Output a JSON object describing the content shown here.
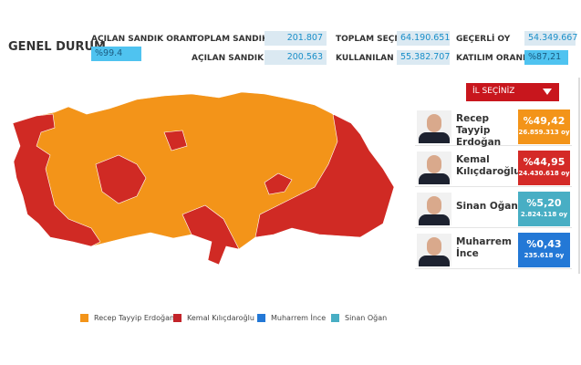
{
  "header": {
    "title": "GENEL DURUM",
    "stats": [
      {
        "label": "AÇILAN SANDIK ORANI",
        "value": "%99.4"
      },
      {
        "label": "TOPLAM SANDIK",
        "value": "201.807"
      },
      {
        "label": "AÇILAN SANDIK",
        "value": "200.563"
      },
      {
        "label": "TOPLAM SEÇMEN",
        "value": "64.190.651"
      },
      {
        "label": "KULLANILAN OY",
        "value": "55.382.707"
      },
      {
        "label": "GEÇERLİ OY",
        "value": "54.349.667"
      },
      {
        "label": "KATILIM ORANI",
        "value": "%87,21"
      }
    ]
  },
  "province_select": {
    "label": "İL SEÇİNİZ"
  },
  "candidates": [
    {
      "name": "Recep Tayyip Erdoğan",
      "pct": "%49,42",
      "votes": "26.859.313 oy",
      "color": "#f39419"
    },
    {
      "name": "Kemal Kılıçdaroğlu",
      "pct": "%44,95",
      "votes": "24.430.618 oy",
      "color": "#d42a27"
    },
    {
      "name": "Sinan Oğan",
      "pct": "%5,20",
      "votes": "2.824.118 oy",
      "color": "#48aec4"
    },
    {
      "name": "Muharrem İnce",
      "pct": "%0,43",
      "votes": "235.618 oy",
      "color": "#2378d6"
    }
  ],
  "legend": [
    {
      "label": "Recep Tayyip Erdoğan",
      "color": "#f39419"
    },
    {
      "label": "Kemal Kılıçdaroğlu",
      "color": "#c3242a"
    },
    {
      "label": "Muharrem İnce",
      "color": "#2378d6"
    },
    {
      "label": "Sinan Oğan",
      "color": "#48aec4"
    }
  ]
}
